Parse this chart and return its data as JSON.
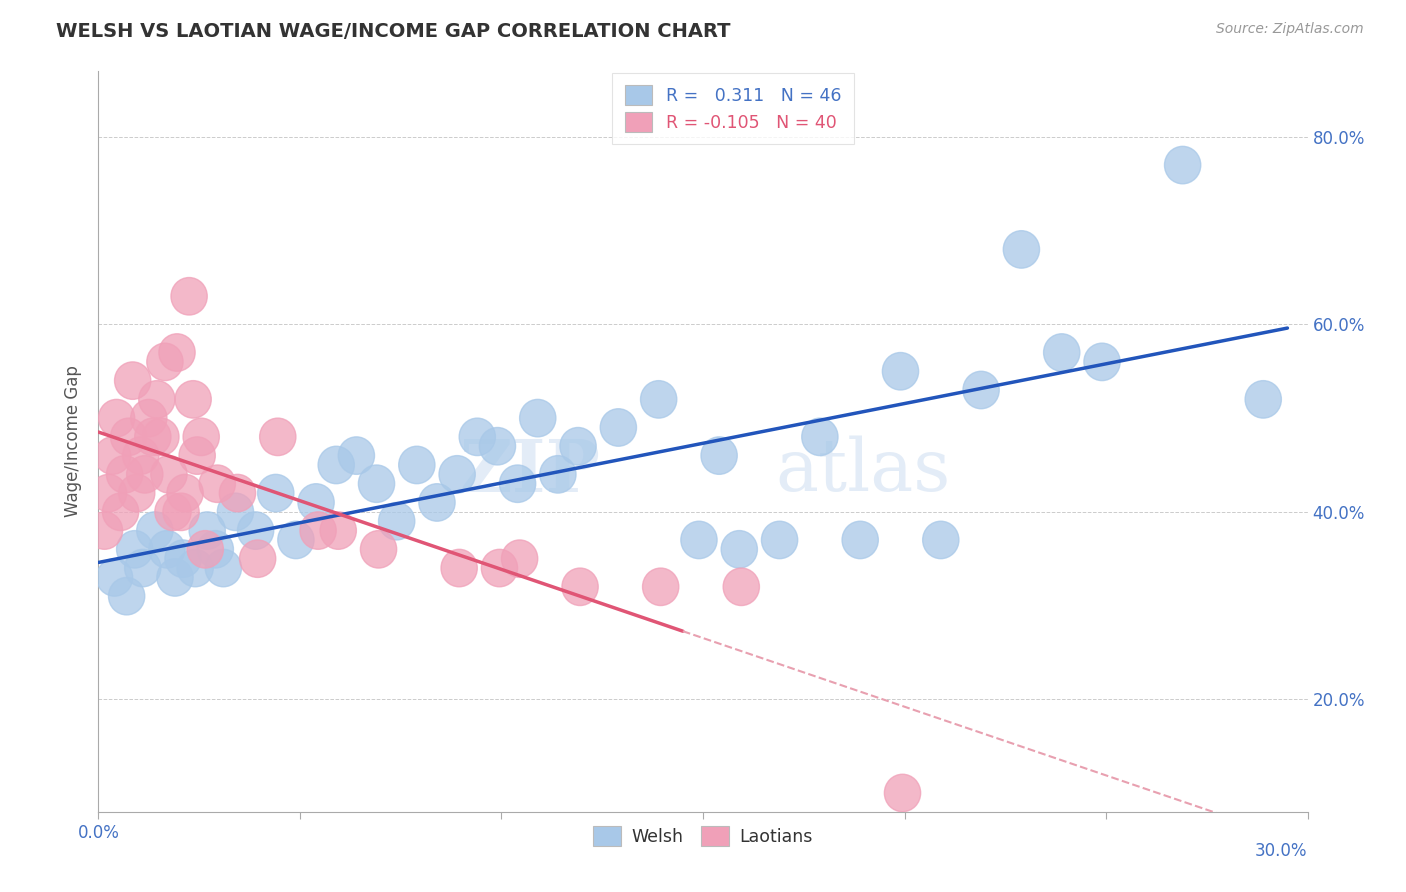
{
  "title": "WELSH VS LAOTIAN WAGE/INCOME GAP CORRELATION CHART",
  "source": "Source: ZipAtlas.com",
  "ylabel": "Wage/Income Gap",
  "xlim": [
    0.0,
    30.0
  ],
  "ylim": [
    8.0,
    87.0
  ],
  "yticks": [
    20.0,
    40.0,
    60.0,
    80.0
  ],
  "xticks": [
    0.0,
    5.0,
    10.0,
    15.0,
    20.0,
    25.0,
    30.0
  ],
  "welsh_color": "#a8c8e8",
  "laotian_color": "#f0a0b8",
  "welsh_line_color": "#2255bb",
  "laotian_solid_color": "#e05575",
  "laotian_dash_color": "#e8a0b0",
  "legend_welsh_r": "0.311",
  "legend_welsh_n": "46",
  "legend_laotian_r": "-0.105",
  "legend_laotian_n": "40",
  "watermark_zip": "ZIP",
  "watermark_atlas": "atlas",
  "welsh_scatter": [
    [
      0.4,
      33
    ],
    [
      0.7,
      31
    ],
    [
      0.9,
      36
    ],
    [
      1.1,
      34
    ],
    [
      1.4,
      38
    ],
    [
      1.7,
      36
    ],
    [
      1.9,
      33
    ],
    [
      2.1,
      35
    ],
    [
      2.4,
      34
    ],
    [
      2.7,
      38
    ],
    [
      2.9,
      36
    ],
    [
      3.1,
      34
    ],
    [
      3.4,
      40
    ],
    [
      3.9,
      38
    ],
    [
      4.4,
      42
    ],
    [
      4.9,
      37
    ],
    [
      5.4,
      41
    ],
    [
      5.9,
      45
    ],
    [
      6.4,
      46
    ],
    [
      6.9,
      43
    ],
    [
      7.4,
      39
    ],
    [
      7.9,
      45
    ],
    [
      8.4,
      41
    ],
    [
      8.9,
      44
    ],
    [
      9.4,
      48
    ],
    [
      9.9,
      47
    ],
    [
      10.4,
      43
    ],
    [
      10.9,
      50
    ],
    [
      11.4,
      44
    ],
    [
      11.9,
      47
    ],
    [
      12.9,
      49
    ],
    [
      13.9,
      52
    ],
    [
      14.9,
      37
    ],
    [
      15.4,
      46
    ],
    [
      15.9,
      36
    ],
    [
      16.9,
      37
    ],
    [
      17.9,
      48
    ],
    [
      18.9,
      37
    ],
    [
      19.9,
      55
    ],
    [
      20.9,
      37
    ],
    [
      21.9,
      53
    ],
    [
      22.9,
      68
    ],
    [
      23.9,
      57
    ],
    [
      24.9,
      56
    ],
    [
      26.9,
      77
    ],
    [
      28.9,
      52
    ]
  ],
  "laotian_scatter": [
    [
      0.15,
      38
    ],
    [
      0.25,
      42
    ],
    [
      0.35,
      46
    ],
    [
      0.45,
      50
    ],
    [
      0.55,
      40
    ],
    [
      0.65,
      44
    ],
    [
      0.75,
      48
    ],
    [
      0.85,
      54
    ],
    [
      0.95,
      42
    ],
    [
      1.05,
      46
    ],
    [
      1.15,
      44
    ],
    [
      1.25,
      50
    ],
    [
      1.35,
      48
    ],
    [
      1.45,
      52
    ],
    [
      1.55,
      48
    ],
    [
      1.65,
      56
    ],
    [
      1.75,
      44
    ],
    [
      1.85,
      40
    ],
    [
      1.95,
      57
    ],
    [
      2.05,
      40
    ],
    [
      2.15,
      42
    ],
    [
      2.25,
      63
    ],
    [
      2.35,
      52
    ],
    [
      2.45,
      46
    ],
    [
      2.55,
      48
    ],
    [
      2.65,
      36
    ],
    [
      2.95,
      43
    ],
    [
      3.45,
      42
    ],
    [
      3.95,
      35
    ],
    [
      4.45,
      48
    ],
    [
      5.45,
      38
    ],
    [
      5.95,
      38
    ],
    [
      6.95,
      36
    ],
    [
      8.95,
      34
    ],
    [
      9.95,
      34
    ],
    [
      10.45,
      35
    ],
    [
      11.95,
      32
    ],
    [
      13.95,
      32
    ],
    [
      15.95,
      32
    ],
    [
      19.95,
      10
    ]
  ]
}
